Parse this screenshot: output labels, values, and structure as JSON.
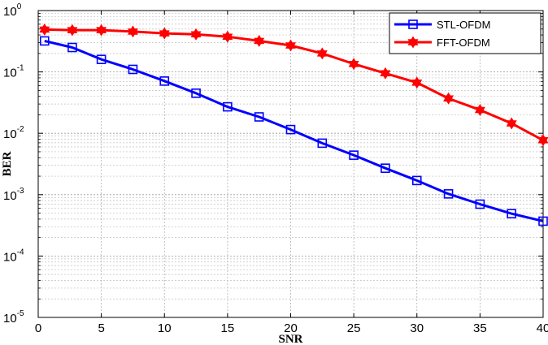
{
  "chart_data": {
    "type": "line",
    "xlabel": "SNR",
    "ylabel": "BER",
    "xlim": [
      0,
      40
    ],
    "ylim": [
      1e-05,
      1
    ],
    "y_scale": "log",
    "grid": true,
    "legend_position": "top-right",
    "x_ticks": [
      0,
      5,
      10,
      15,
      20,
      25,
      30,
      35,
      40
    ],
    "y_ticks": [
      {
        "value": 1,
        "base": "10",
        "exp": "0"
      },
      {
        "value": 0.1,
        "base": "10",
        "exp": "-1"
      },
      {
        "value": 0.01,
        "base": "10",
        "exp": "-2"
      },
      {
        "value": 0.001,
        "base": "10",
        "exp": "-3"
      },
      {
        "value": 0.0001,
        "base": "10",
        "exp": "-4"
      },
      {
        "value": 1e-05,
        "base": "10",
        "exp": "-5"
      }
    ],
    "series": [
      {
        "name": "STL-OFDM",
        "color": "#0000ff",
        "marker": "square",
        "x": [
          0.5,
          2.7,
          5,
          7.5,
          10,
          12.5,
          15,
          17.5,
          20,
          22.5,
          25,
          27.5,
          30,
          32.5,
          35,
          37.5,
          40
        ],
        "y": [
          0.32,
          0.25,
          0.16,
          0.11,
          0.071,
          0.045,
          0.027,
          0.0185,
          0.0115,
          0.0069,
          0.0044,
          0.0027,
          0.0017,
          0.00103,
          0.0007,
          0.00049,
          0.00037
        ]
      },
      {
        "name": "FFT-OFDM",
        "color": "#ff0000",
        "marker": "hexagram",
        "x": [
          0.5,
          2.7,
          5,
          7.5,
          10,
          12.5,
          15,
          17.5,
          20,
          22.5,
          25,
          27.5,
          30,
          32.5,
          35,
          37.5,
          40
        ],
        "y": [
          0.49,
          0.48,
          0.48,
          0.455,
          0.425,
          0.41,
          0.375,
          0.32,
          0.27,
          0.2,
          0.135,
          0.095,
          0.067,
          0.037,
          0.024,
          0.0145,
          0.0077
        ]
      }
    ]
  }
}
